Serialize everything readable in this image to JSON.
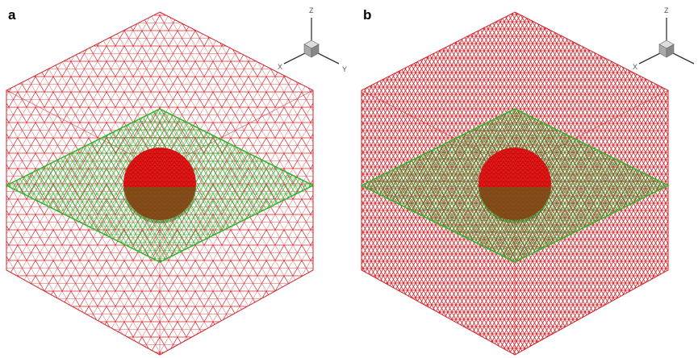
{
  "panels": [
    {
      "label": "a",
      "axes": {
        "z": "Z",
        "x": "X",
        "y": "Y"
      }
    },
    {
      "label": "b",
      "axes": {
        "z": "Z",
        "x": "X"
      }
    }
  ]
}
